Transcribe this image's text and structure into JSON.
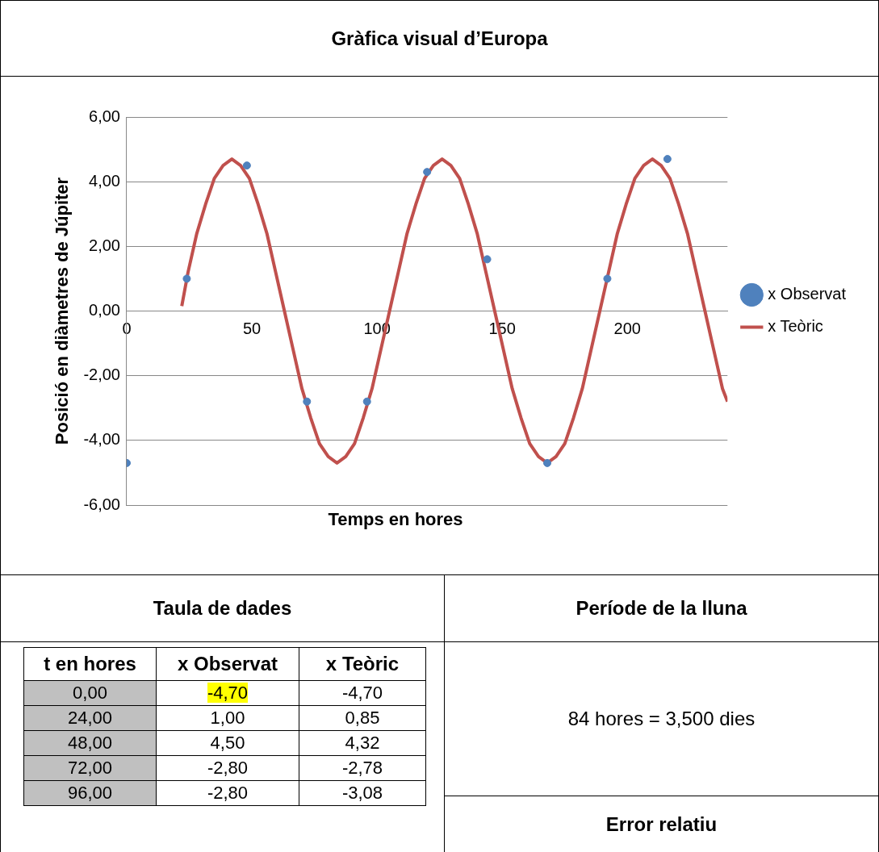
{
  "chart_data": {
    "type": "scatter",
    "title": "Gràfica visual d’Europa",
    "xlabel": "Temps en hores",
    "ylabel": "Posició en diàmetres de Júpiter",
    "xlim": [
      0,
      240
    ],
    "xticks": [
      0,
      50,
      100,
      150,
      200
    ],
    "ylim": [
      -6,
      6
    ],
    "yticks": [
      {
        "value": -6,
        "label": "-6,00"
      },
      {
        "value": -4,
        "label": "-4,00"
      },
      {
        "value": -2,
        "label": "-2,00"
      },
      {
        "value": 0,
        "label": "0,00"
      },
      {
        "value": 2,
        "label": "2,00"
      },
      {
        "value": 4,
        "label": "4,00"
      },
      {
        "value": 6,
        "label": "6,00"
      }
    ],
    "grid": "y",
    "legend": "right",
    "series": [
      {
        "name": "x Observat",
        "type": "scatter",
        "marker": "circle",
        "color": "#4f81bd",
        "x": [
          0,
          24,
          48,
          72,
          96,
          120,
          144,
          168,
          192,
          216
        ],
        "values": [
          -4.7,
          1.0,
          4.5,
          -2.8,
          -2.8,
          4.3,
          1.6,
          -4.7,
          1.0,
          4.7
        ]
      },
      {
        "name": "x Teòric",
        "type": "line",
        "marker": "none",
        "line_style": "solid",
        "color": "#c0504d",
        "x": [
          22,
          24.5,
          28,
          31.5,
          35,
          38.5,
          42,
          45.5,
          49,
          52.5,
          56,
          59.5,
          63,
          66.5,
          70,
          73.5,
          77,
          80.5,
          84,
          87.5,
          91,
          94.5,
          98,
          101.5,
          105,
          108.5,
          112,
          115.5,
          119,
          122.5,
          126,
          129.5,
          133,
          136.5,
          140,
          143.5,
          147,
          150.5,
          154,
          157.5,
          161,
          164.5,
          168,
          171.5,
          175,
          178.5,
          182,
          185.5,
          189,
          192.5,
          196,
          199.5,
          203,
          206.5,
          210,
          213.5,
          217,
          220.5,
          224,
          227.5,
          231,
          234.5,
          238,
          240
        ],
        "values": [
          0.15,
          1.2,
          2.4,
          3.3,
          4.1,
          4.5,
          4.7,
          4.5,
          4.1,
          3.3,
          2.4,
          1.2,
          0,
          -1.2,
          -2.4,
          -3.3,
          -4.1,
          -4.5,
          -4.7,
          -4.5,
          -4.1,
          -3.3,
          -2.4,
          -1.2,
          0,
          1.2,
          2.4,
          3.3,
          4.1,
          4.5,
          4.7,
          4.5,
          4.1,
          3.3,
          2.4,
          1.2,
          0,
          -1.2,
          -2.4,
          -3.3,
          -4.1,
          -4.5,
          -4.7,
          -4.5,
          -4.1,
          -3.3,
          -2.4,
          -1.2,
          0,
          1.2,
          2.4,
          3.3,
          4.1,
          4.5,
          4.7,
          4.5,
          4.1,
          3.3,
          2.4,
          1.2,
          0,
          -1.2,
          -2.4,
          -2.8
        ]
      }
    ],
    "annotations": [
      "Taula de dades",
      "Període de la lluna",
      "84 hores = 3,500 dies",
      "Error relatiu",
      "t en hores",
      "x Observat",
      "x Teòric",
      "0,00",
      "-4,70",
      "-4,70",
      "24,00",
      "1,00",
      "0,85",
      "48,00",
      "4,50",
      "4,32",
      "72,00",
      "-2,80",
      "-2,78",
      "96,00",
      "-2,80",
      "-3,08"
    ]
  }
}
